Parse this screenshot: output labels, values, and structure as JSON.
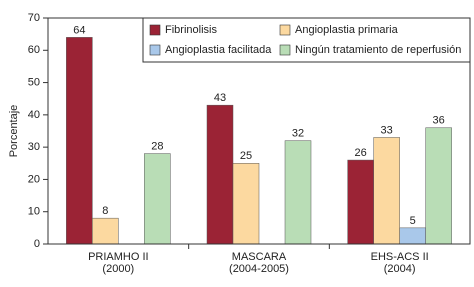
{
  "chart_data": {
    "type": "bar",
    "y_label": "Porcentaje",
    "categories": [
      "PRIAMHO II\n(2000)",
      "MASCARA\n(2004-2005)",
      "EHS-ACS II\n(2004)"
    ],
    "series": [
      {
        "name": "Fibrinolisis",
        "color": "#9b2335",
        "values": [
          64,
          43,
          26
        ]
      },
      {
        "name": "Angioplastia primaria",
        "color": "#fcd9a0",
        "values": [
          8,
          25,
          33
        ]
      },
      {
        "name": "Angioplastia facilitada",
        "color": "#a9c8ea",
        "values": [
          null,
          null,
          5
        ]
      },
      {
        "name": "Ningún tratamiento de reperfusión",
        "color": "#b9ddb6",
        "values": [
          28,
          32,
          36
        ]
      }
    ],
    "ylim": [
      0,
      70
    ],
    "yticks": [
      0,
      10,
      20,
      30,
      40,
      50,
      60,
      70
    ]
  }
}
